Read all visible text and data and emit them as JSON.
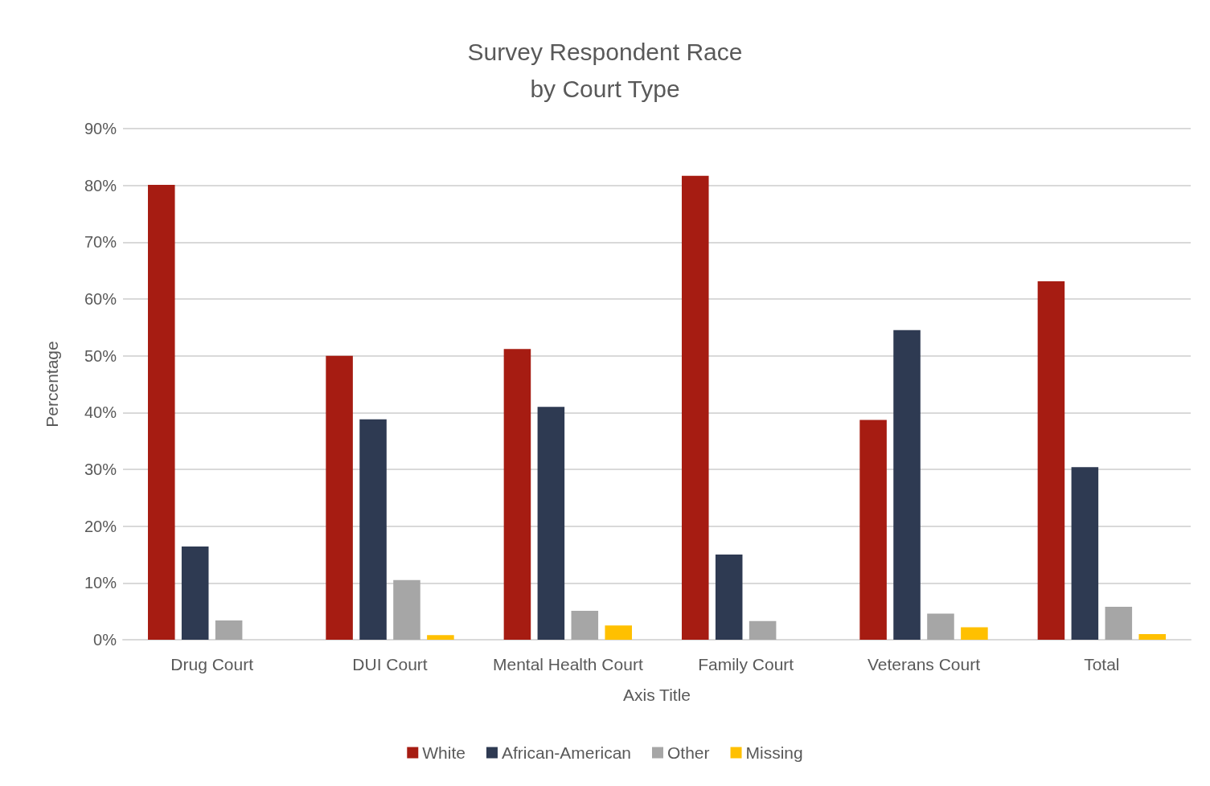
{
  "chart_data": {
    "type": "bar",
    "title": "Survey Respondent Race\nby Court Type",
    "xlabel": "Axis Title",
    "ylabel": "Percentage",
    "categories": [
      "Drug Court",
      "DUI Court",
      "Mental Health Court",
      "Family Court",
      "Veterans Court",
      "Total"
    ],
    "series": [
      {
        "name": "White",
        "color": "#a61c12",
        "values": [
          80.1,
          50.0,
          51.2,
          81.7,
          38.7,
          63.1
        ]
      },
      {
        "name": "African-American",
        "color": "#2e3a52",
        "values": [
          16.4,
          38.8,
          41.0,
          15.0,
          54.5,
          30.4
        ]
      },
      {
        "name": "Other",
        "color": "#a6a6a6",
        "values": [
          3.4,
          10.5,
          5.1,
          3.3,
          4.6,
          5.8
        ]
      },
      {
        "name": "Missing",
        "color": "#ffc000",
        "values": [
          0,
          0.8,
          2.5,
          0,
          2.2,
          1.0
        ]
      }
    ],
    "ylim": [
      0,
      90
    ],
    "yticks": [
      {
        "value": 0,
        "label": "0%"
      },
      {
        "value": 10,
        "label": "10%"
      },
      {
        "value": 20,
        "label": "20%"
      },
      {
        "value": 30,
        "label": "30%"
      },
      {
        "value": 40,
        "label": "40%"
      },
      {
        "value": 50,
        "label": "50%"
      },
      {
        "value": 60,
        "label": "60%"
      },
      {
        "value": 70,
        "label": "70%"
      },
      {
        "value": 80,
        "label": "80%"
      },
      {
        "value": 90,
        "label": "90%"
      }
    ],
    "grid": "y",
    "legend": "bottom"
  }
}
